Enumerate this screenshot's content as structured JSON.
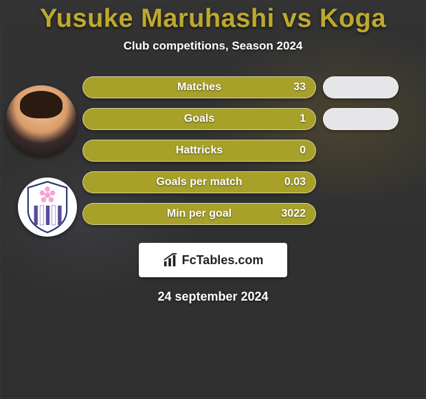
{
  "title": {
    "text": "Yusuke Maruhashi vs Koga",
    "color": "#bda92e"
  },
  "subtitle": "Club competitions, Season 2024",
  "colors": {
    "left_pill": "#a7a12a",
    "right_pill": "#e6e6e9",
    "pill_border": "#f2f2f2"
  },
  "stats": [
    {
      "label": "Matches",
      "left_value": "33",
      "show_right": true
    },
    {
      "label": "Goals",
      "left_value": "1",
      "show_right": true
    },
    {
      "label": "Hattricks",
      "left_value": "0",
      "show_right": false
    },
    {
      "label": "Goals per match",
      "left_value": "0.03",
      "show_right": false
    },
    {
      "label": "Min per goal",
      "left_value": "3022",
      "show_right": false
    }
  ],
  "brand": "FcTables.com",
  "date": "24 september 2024",
  "crest": {
    "stripe_color": "#5b4a9e",
    "flower_color": "#f4a6d6",
    "outline_color": "#233a6b"
  }
}
